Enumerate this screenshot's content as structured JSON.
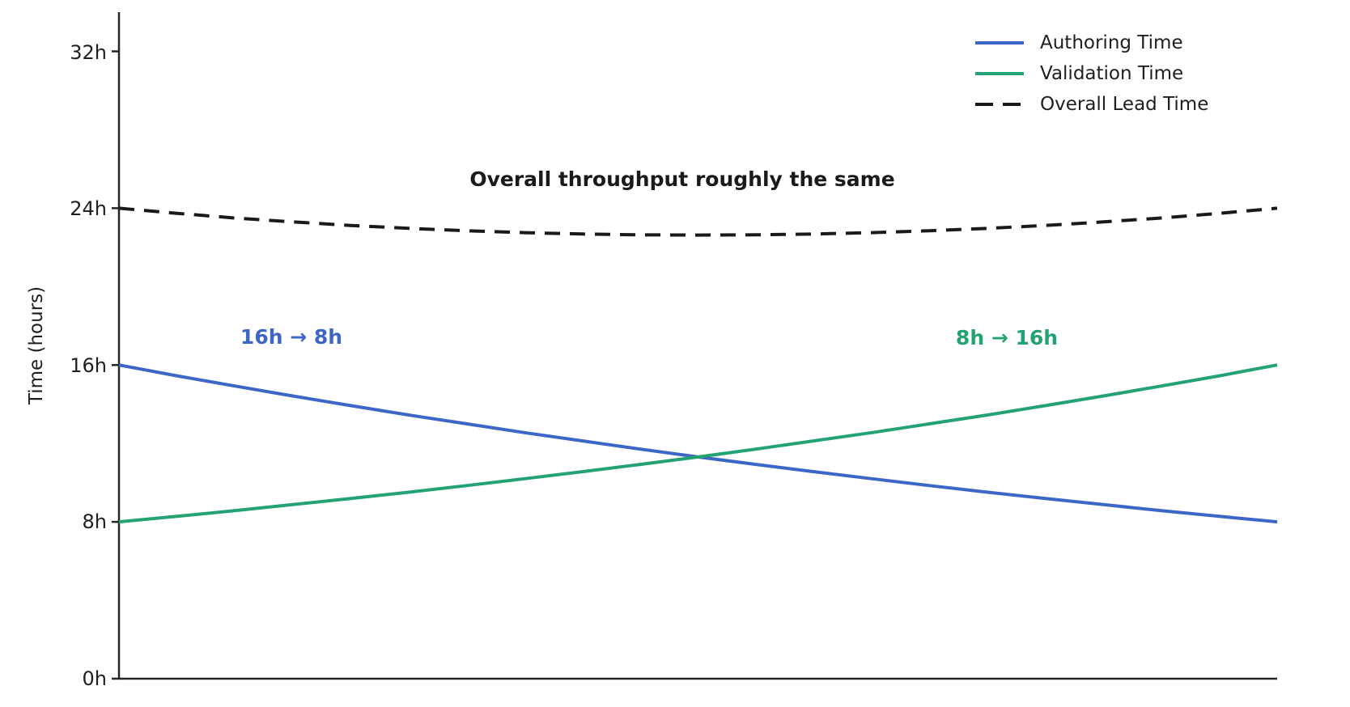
{
  "figure": {
    "background_color": "#ffffff",
    "axis_color": "#262626",
    "text_color": "#1f1f1f"
  },
  "chart_data": {
    "type": "line",
    "title": "",
    "xlabel": "",
    "ylabel": "Time (hours)",
    "xlim": [
      0,
      1
    ],
    "ylim": [
      0,
      34
    ],
    "grid": false,
    "legend_position": "upper right",
    "xtick_labels": [],
    "ytick_values": [
      0,
      8,
      16,
      24,
      32
    ],
    "ytick_labels": [
      "0h",
      "8h",
      "16h",
      "24h",
      "32h"
    ],
    "x": [
      0,
      0.05,
      0.1,
      0.15,
      0.2,
      0.25,
      0.3,
      0.35,
      0.4,
      0.45,
      0.5,
      0.55,
      0.6,
      0.65,
      0.7,
      0.75,
      0.8,
      0.85,
      0.9,
      0.95,
      1
    ],
    "series": [
      {
        "name": "Authoring Time",
        "color": "#3c66c8",
        "style": "solid",
        "start_value_hours": 16,
        "end_value_hours": 8,
        "values": [
          16.0,
          15.45,
          14.93,
          14.42,
          13.93,
          13.45,
          13.0,
          12.55,
          12.13,
          11.71,
          11.31,
          10.93,
          10.56,
          10.2,
          9.85,
          9.51,
          9.19,
          8.88,
          8.57,
          8.28,
          8.0
        ]
      },
      {
        "name": "Validation Time",
        "color": "#23a371",
        "style": "solid",
        "start_value_hours": 8,
        "end_value_hours": 16,
        "values": [
          8.0,
          8.28,
          8.57,
          8.88,
          9.19,
          9.51,
          9.85,
          10.2,
          10.56,
          10.93,
          11.31,
          11.71,
          12.13,
          12.55,
          13.0,
          13.45,
          13.93,
          14.42,
          14.93,
          15.45,
          16.0
        ]
      },
      {
        "name": "Overall Lead Time",
        "color": "#1a1a1a",
        "style": "dashed",
        "start_value_hours": 24,
        "end_value_hours": 24,
        "values": [
          24.0,
          23.74,
          23.5,
          23.3,
          23.12,
          22.97,
          22.85,
          22.75,
          22.68,
          22.64,
          22.63,
          22.64,
          22.68,
          22.75,
          22.85,
          22.97,
          23.12,
          23.3,
          23.5,
          23.74,
          24.0
        ]
      }
    ],
    "annotations": [
      {
        "id": "overall",
        "text": "Overall throughput roughly the same",
        "color": "#1a1a1a"
      },
      {
        "id": "authoring",
        "text": "16h → 8h",
        "color": "#3c66c8"
      },
      {
        "id": "validation",
        "text": "8h → 16h",
        "color": "#23a371"
      }
    ]
  }
}
